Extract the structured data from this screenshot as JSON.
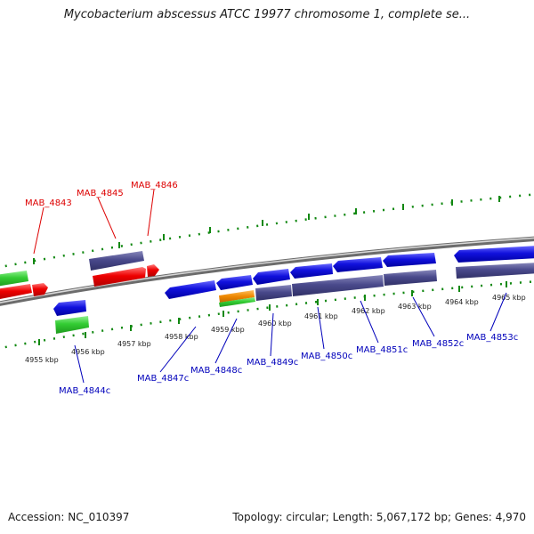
{
  "title": "Mycobacterium abscessus ATCC 19977 chromosome 1, complete se...",
  "footer": {
    "accession": "Accession: NC_010397",
    "info": "Topology: circular; Length: 5,067,172 bp; Genes: 4,970"
  },
  "colors": {
    "forward_label": "#dd0000",
    "reverse_label": "#0000bb",
    "tick": "#118811",
    "backbone": "#888888",
    "red_gene": "#ee0000",
    "green_gene": "#33cc33",
    "blue_gene": "#1111dd",
    "purple_gene": "#4a4a8c",
    "orange_gene": "#ee8800"
  },
  "scale_labels": [
    "4955 kbp",
    "4956 kbp",
    "4957 kbp",
    "4958 kbp",
    "4959 kbp",
    "4960 kbp",
    "4961 kbp",
    "4962 kbp",
    "4963 kbp",
    "4964 kbp",
    "4965 kbp"
  ],
  "forward_genes": [
    "MAB_4843",
    "MAB_4845",
    "MAB_4846"
  ],
  "reverse_genes": [
    "MAB_4844c",
    "MAB_4847c",
    "MAB_4848c",
    "MAB_4849c",
    "MAB_4850c",
    "MAB_4851c",
    "MAB_4852c",
    "MAB_4853c"
  ]
}
